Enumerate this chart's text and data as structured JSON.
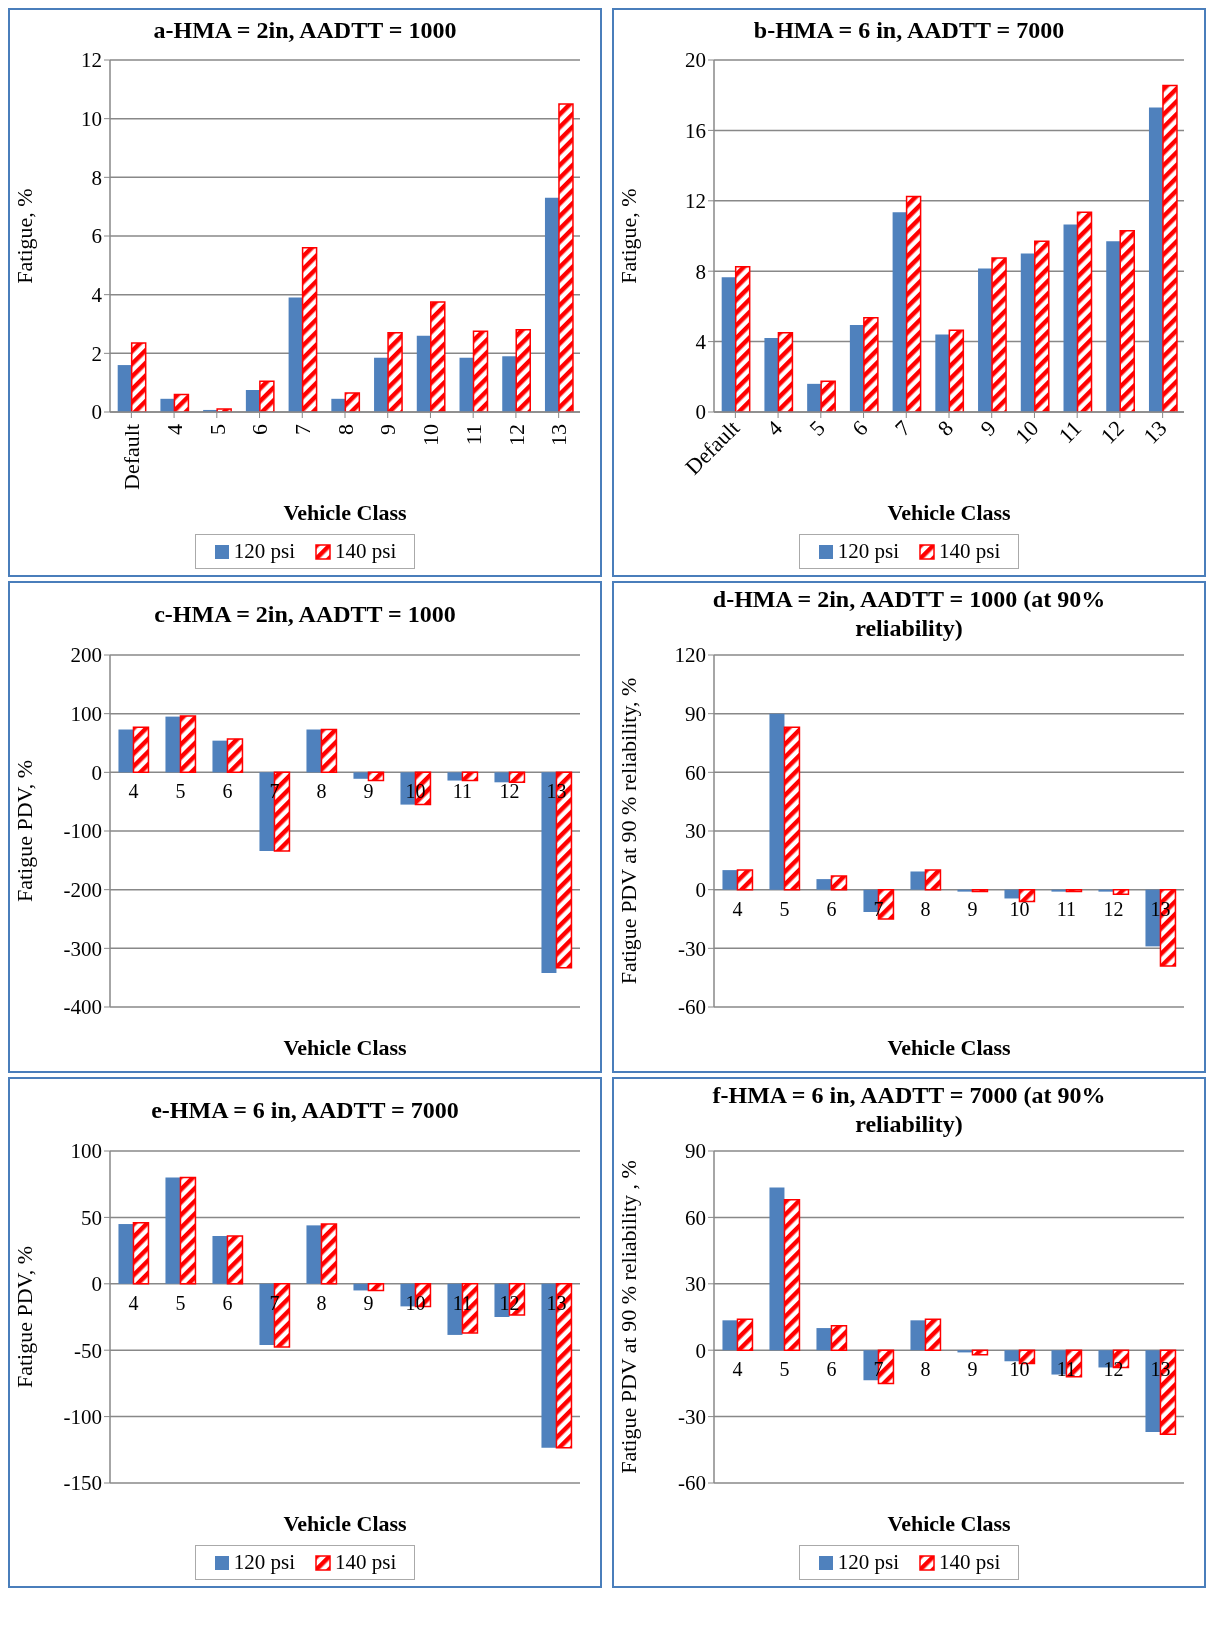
{
  "chart_data": [
    {
      "type": "bar",
      "title": "a-HMA = 2in, AADTT = 1000",
      "xlabel": "Vehicle Class",
      "ylabel": "Fatigue, %",
      "categories": [
        "Default",
        "4",
        "5",
        "6",
        "7",
        "8",
        "9",
        "10",
        "11",
        "12",
        "13"
      ],
      "series": [
        {
          "name": "120 psi",
          "color": "#4f81bd",
          "values": [
            1.6,
            0.45,
            0.07,
            0.75,
            3.9,
            0.45,
            1.85,
            2.6,
            1.85,
            1.9,
            7.3
          ]
        },
        {
          "name": "140 psi",
          "color": "#ff0000",
          "values": [
            2.35,
            0.6,
            0.1,
            1.05,
            5.6,
            0.65,
            2.7,
            3.75,
            2.75,
            2.8,
            10.5
          ]
        }
      ],
      "ylim": [
        0,
        12
      ],
      "yticks": [
        0,
        2,
        4,
        6,
        8,
        10,
        12
      ],
      "grid": "y",
      "legend": "bottom"
    },
    {
      "type": "bar",
      "title": "b-HMA = 6 in, AADTT = 7000",
      "xlabel": "Vehicle Class",
      "ylabel": "Fatigue, %",
      "categories": [
        "Default",
        "4",
        "5",
        "6",
        "7",
        "8",
        "9",
        "10",
        "11",
        "12",
        "13"
      ],
      "series": [
        {
          "name": "120 psi",
          "color": "#4f81bd",
          "values": [
            7.65,
            4.2,
            1.6,
            4.95,
            11.35,
            4.4,
            8.15,
            9.0,
            10.65,
            9.7,
            17.3
          ]
        },
        {
          "name": "140 psi",
          "color": "#ff0000",
          "values": [
            8.25,
            4.5,
            1.75,
            5.35,
            12.25,
            4.65,
            8.75,
            9.7,
            11.35,
            10.3,
            18.55
          ]
        }
      ],
      "ylim": [
        0,
        20
      ],
      "yticks": [
        0,
        4,
        8,
        12,
        16,
        20
      ],
      "grid": "y",
      "legend": "bottom"
    },
    {
      "type": "bar",
      "title": "c-HMA = 2in, AADTT = 1000",
      "xlabel": "Vehicle Class",
      "ylabel": "Fatigue PDV,  %",
      "categories": [
        "4",
        "5",
        "6",
        "7",
        "8",
        "9",
        "10",
        "11",
        "12",
        "13"
      ],
      "series": [
        {
          "color": "#4f81bd",
          "values": [
            73,
            95,
            54,
            -134,
            73,
            -11,
            -55,
            -14,
            -17,
            -342
          ]
        },
        {
          "color": "#ff0000",
          "values": [
            77,
            96,
            57,
            -134,
            73,
            -14,
            -55,
            -14,
            -17,
            -333
          ]
        }
      ],
      "ylim": [
        -400,
        200
      ],
      "yticks": [
        -400,
        -300,
        -200,
        -100,
        0,
        100,
        200
      ],
      "grid": "y"
    },
    {
      "type": "bar",
      "title": "d-HMA = 2in, AADTT = 1000 (at 90%  reliability)",
      "xlabel": "Vehicle Class",
      "ylabel": "Fatigue PDV at 90 % reliability, %",
      "categories": [
        "4",
        "5",
        "6",
        "7",
        "8",
        "9",
        "10",
        "11",
        "12",
        "13"
      ],
      "series": [
        {
          "color": "#4f81bd",
          "values": [
            10,
            90,
            5.4,
            -11.4,
            9.3,
            -1,
            -4.5,
            -1,
            -1,
            -29
          ]
        },
        {
          "color": "#ff0000",
          "values": [
            10,
            83,
            7,
            -15,
            10,
            -1,
            -6,
            -1,
            -2.3,
            -39
          ]
        }
      ],
      "ylim": [
        -60,
        120
      ],
      "yticks": [
        -60,
        -30,
        0,
        30,
        60,
        90,
        120
      ],
      "grid": "y"
    },
    {
      "type": "bar",
      "title": "e-HMA = 6 in, AADTT = 7000",
      "xlabel": "Vehicle Class",
      "ylabel": "Fatigue PDV, %",
      "categories": [
        "4",
        "5",
        "6",
        "7",
        "8",
        "9",
        "10",
        "11",
        "12",
        "13"
      ],
      "series": [
        {
          "name": "120 psi",
          "color": "#4f81bd",
          "values": [
            45,
            80,
            36,
            -46,
            44,
            -5,
            -17,
            -38.5,
            -25,
            -123.5
          ]
        },
        {
          "name": "140 psi",
          "color": "#ff0000",
          "values": [
            46,
            80,
            36,
            -47.5,
            45,
            -5,
            -17,
            -37,
            -23.5,
            -123.5
          ]
        }
      ],
      "ylim": [
        -150,
        100
      ],
      "yticks": [
        -150,
        -100,
        -50,
        0,
        50,
        100
      ],
      "grid": "y",
      "legend": "bottom"
    },
    {
      "type": "bar",
      "title": "f-HMA = 6 in, AADTT = 7000 (at 90%  reliability)",
      "xlabel": "Vehicle Class",
      "ylabel": "Fatigue PDV at 90 % reliability , %",
      "categories": [
        "4",
        "5",
        "6",
        "7",
        "8",
        "9",
        "10",
        "11",
        "12",
        "13"
      ],
      "series": [
        {
          "name": "120 psi",
          "color": "#4f81bd",
          "values": [
            13.5,
            73.5,
            10,
            -13.6,
            13.5,
            -1,
            -5,
            -11,
            -7.8,
            -37
          ]
        },
        {
          "name": "140 psi",
          "color": "#ff0000",
          "values": [
            14,
            68,
            11,
            -15,
            14,
            -2,
            -6,
            -12,
            -7.8,
            -38
          ]
        }
      ],
      "ylim": [
        -60,
        90
      ],
      "yticks": [
        -60,
        -30,
        0,
        30,
        60,
        90
      ],
      "grid": "y",
      "legend": "bottom"
    }
  ]
}
